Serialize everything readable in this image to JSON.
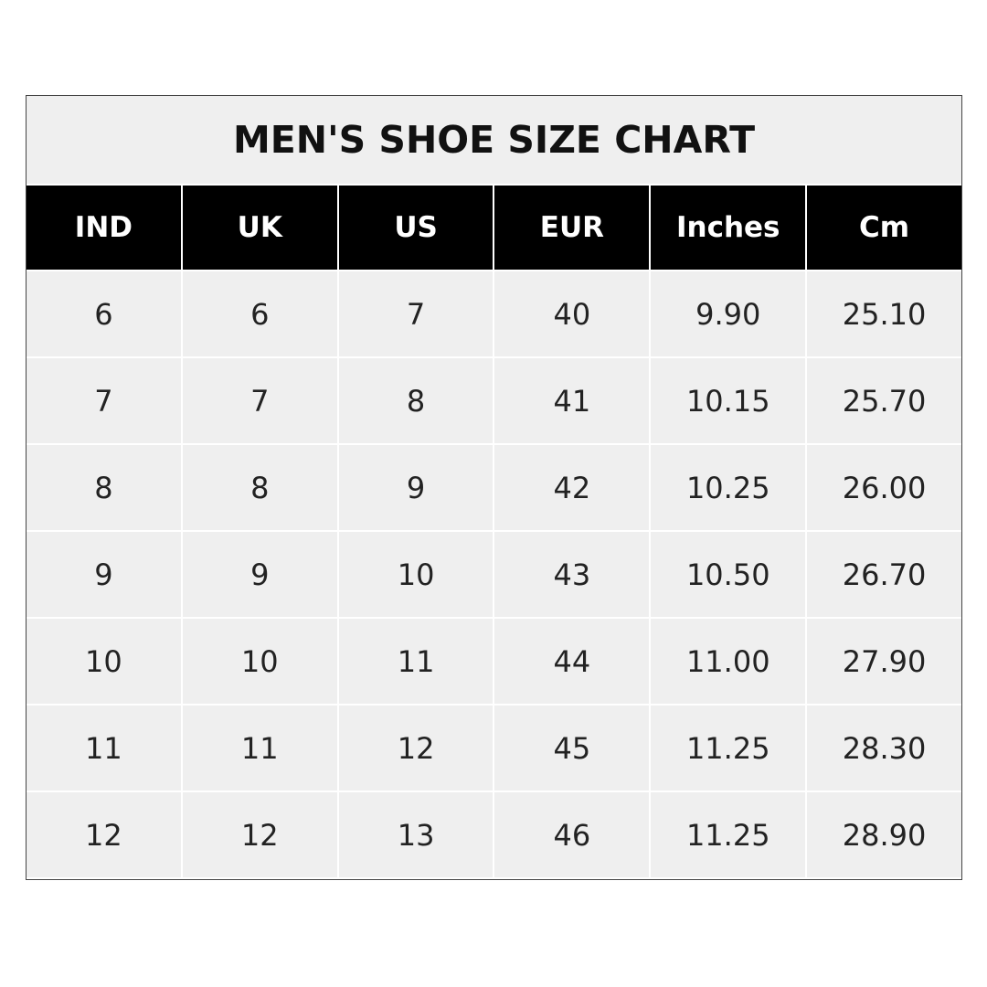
{
  "title": "MEN'S SHOE SIZE CHART",
  "columns": [
    "IND",
    "UK",
    "US",
    "EUR",
    "Inches",
    "Cm"
  ],
  "rows": [
    [
      "6",
      "6",
      "7",
      "40",
      "9.90",
      "25.10"
    ],
    [
      "7",
      "7",
      "8",
      "41",
      "10.15",
      "25.70"
    ],
    [
      "8",
      "8",
      "9",
      "42",
      "10.25",
      "26.00"
    ],
    [
      "9",
      "9",
      "10",
      "43",
      "10.50",
      "26.70"
    ],
    [
      "10",
      "10",
      "11",
      "44",
      "11.00",
      "27.90"
    ],
    [
      "11",
      "11",
      "12",
      "45",
      "11.25",
      "28.30"
    ],
    [
      "12",
      "12",
      "13",
      "46",
      "11.25",
      "28.90"
    ]
  ],
  "colors": {
    "header_bg": "#000000",
    "cell_bg": "#efefef",
    "border": "#444444"
  }
}
